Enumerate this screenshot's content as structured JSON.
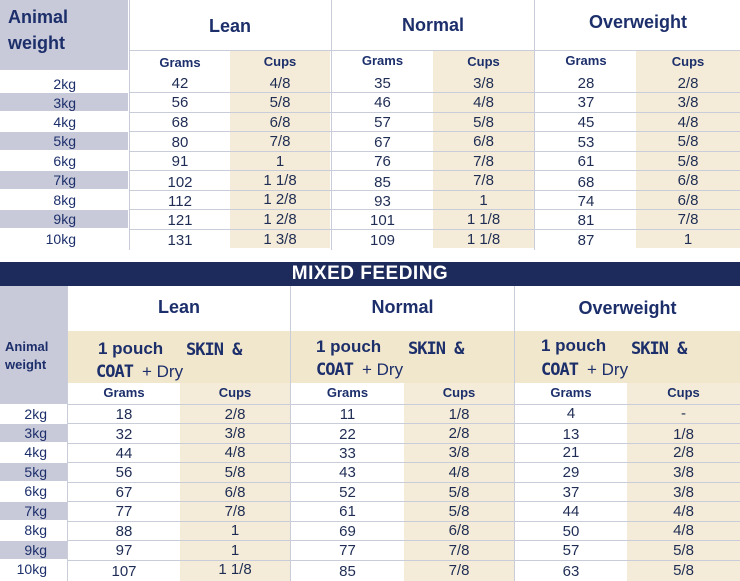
{
  "top": {
    "animal_weight": [
      "Animal",
      "weight"
    ],
    "groups": [
      "Lean",
      "Normal",
      "Overweight"
    ],
    "subheaders": [
      "Grams",
      "Cups"
    ],
    "rows": [
      {
        "weight": "2kg",
        "vals": [
          "42",
          "4/8",
          "35",
          "3/8",
          "28",
          "2/8"
        ]
      },
      {
        "weight": "3kg",
        "vals": [
          "56",
          "5/8",
          "46",
          "4/8",
          "37",
          "3/8"
        ]
      },
      {
        "weight": "4kg",
        "vals": [
          "68",
          "6/8",
          "57",
          "5/8",
          "45",
          "4/8"
        ]
      },
      {
        "weight": "5kg",
        "vals": [
          "80",
          "7/8",
          "67",
          "6/8",
          "53",
          "5/8"
        ]
      },
      {
        "weight": "6kg",
        "vals": [
          "91",
          "1",
          "76",
          "7/8",
          "61",
          "5/8"
        ]
      },
      {
        "weight": "7kg",
        "vals": [
          "102",
          "1 1/8",
          "85",
          "7/8",
          "68",
          "6/8"
        ]
      },
      {
        "weight": "8kg",
        "vals": [
          "112",
          "1 2/8",
          "93",
          "1",
          "74",
          "6/8"
        ]
      },
      {
        "weight": "9kg",
        "vals": [
          "121",
          "1 2/8",
          "101",
          "1 1/8",
          "81",
          "7/8"
        ]
      },
      {
        "weight": "10kg",
        "vals": [
          "131",
          "1 3/8",
          "109",
          "1 1/8",
          "87",
          "1"
        ]
      }
    ]
  },
  "banner": "MIXED FEEDING",
  "bottom": {
    "animal_weight": [
      "Animal",
      "weight"
    ],
    "groups": [
      "Lean",
      "Normal",
      "Overweight"
    ],
    "pouch": {
      "line1a": "1 pouch",
      "line1b": "SKIN &",
      "line2a": "COAT",
      "line2b": "+ Dry"
    },
    "subheaders": [
      "Grams",
      "Cups"
    ],
    "rows": [
      {
        "weight": "2kg",
        "vals": [
          "18",
          "2/8",
          "11",
          "1/8",
          "4",
          "-"
        ]
      },
      {
        "weight": "3kg",
        "vals": [
          "32",
          "3/8",
          "22",
          "2/8",
          "13",
          "1/8"
        ]
      },
      {
        "weight": "4kg",
        "vals": [
          "44",
          "4/8",
          "33",
          "3/8",
          "21",
          "2/8"
        ]
      },
      {
        "weight": "5kg",
        "vals": [
          "56",
          "5/8",
          "43",
          "4/8",
          "29",
          "3/8"
        ]
      },
      {
        "weight": "6kg",
        "vals": [
          "67",
          "6/8",
          "52",
          "5/8",
          "37",
          "3/8"
        ]
      },
      {
        "weight": "7kg",
        "vals": [
          "77",
          "7/8",
          "61",
          "5/8",
          "44",
          "4/8"
        ]
      },
      {
        "weight": "8kg",
        "vals": [
          "88",
          "1",
          "69",
          "6/8",
          "50",
          "4/8"
        ]
      },
      {
        "weight": "9kg",
        "vals": [
          "97",
          "1",
          "77",
          "7/8",
          "57",
          "5/8"
        ]
      },
      {
        "weight": "10kg",
        "vals": [
          "107",
          "1 1/8",
          "85",
          "7/8",
          "63",
          "5/8"
        ]
      }
    ]
  }
}
